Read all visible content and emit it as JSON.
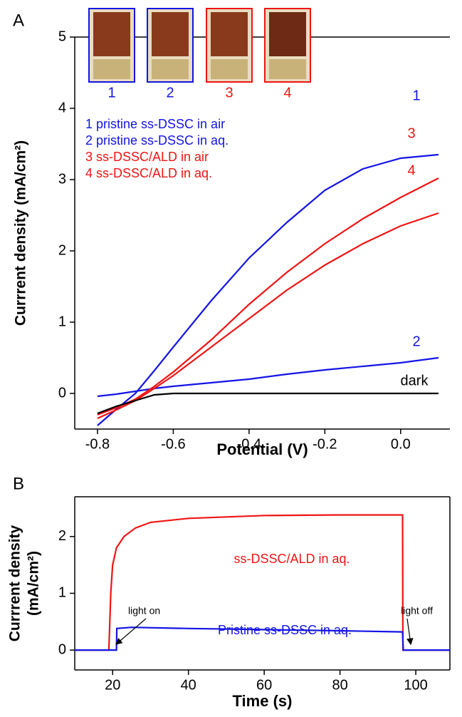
{
  "chart_data": [
    {
      "type": "line",
      "panel": "A",
      "xlabel": "Potential (V)",
      "ylabel": [
        "Currrent density (mA/cm²)"
      ],
      "xlim": [
        -0.86,
        0.13
      ],
      "ylim": [
        -0.5,
        5
      ],
      "xticks": [
        -0.8,
        -0.6,
        -0.4,
        -0.2,
        {
          "value": 0,
          "label": "0.0"
        }
      ],
      "yticks": [
        0,
        1,
        2,
        3,
        4,
        5
      ],
      "photo_labels": [
        "1",
        "2",
        "3",
        "4"
      ],
      "x": [
        -0.8,
        -0.75,
        -0.7,
        -0.65,
        -0.6,
        -0.5,
        -0.4,
        -0.3,
        -0.2,
        -0.1,
        0.0,
        0.1
      ],
      "series": [
        {
          "name": "1 pristine ss-DSSC in air",
          "label": "1",
          "color": "#1414e6",
          "values": [
            -0.45,
            -0.22,
            0.0,
            0.32,
            0.65,
            1.3,
            1.9,
            2.4,
            2.85,
            3.15,
            3.3,
            3.35
          ]
        },
        {
          "name": "2 pristine ss-DSSC in aq.",
          "label": "2",
          "color": "#1414e6",
          "values": [
            -0.04,
            -0.01,
            0.03,
            0.07,
            0.1,
            0.15,
            0.2,
            0.27,
            0.33,
            0.38,
            0.43,
            0.5
          ]
        },
        {
          "name": "3 ss-DSSC/ALD in air",
          "label": "3",
          "color": "#f01414",
          "values": [
            -0.3,
            -0.2,
            -0.08,
            0.1,
            0.3,
            0.75,
            1.25,
            1.7,
            2.1,
            2.45,
            2.75,
            3.02
          ]
        },
        {
          "name": "4 ss-DSSC/ALD in aq.",
          "label": "4",
          "color": "#f01414",
          "values": [
            -0.35,
            -0.23,
            -0.1,
            0.07,
            0.25,
            0.65,
            1.05,
            1.45,
            1.8,
            2.1,
            2.35,
            2.53
          ]
        },
        {
          "name": "dark",
          "color": "#000000",
          "values": [
            -0.28,
            -0.18,
            -0.1,
            -0.02,
            0,
            0,
            0,
            0,
            0,
            0,
            0,
            0
          ]
        }
      ]
    },
    {
      "type": "line",
      "panel": "B",
      "xlabel": "Time (s)",
      "ylabel": [
        "Currrent density",
        "(mA/cm²)"
      ],
      "xlim": [
        10,
        109
      ],
      "ylim": [
        -0.35,
        2.7
      ],
      "xticks": [
        20,
        40,
        60,
        80,
        100
      ],
      "yticks": [
        0,
        1,
        2
      ],
      "annotations": [
        "light on",
        "light off"
      ],
      "series": [
        {
          "name": "ss-DSSC/ALD in aq.",
          "color": "#f01414",
          "x": [
            10,
            19,
            19.2,
            19.5,
            20,
            21,
            23,
            26,
            30,
            40,
            60,
            80,
            96.5,
            96.6,
            109
          ],
          "values": [
            0,
            0,
            0.4,
            1.0,
            1.5,
            1.8,
            2.0,
            2.15,
            2.25,
            2.32,
            2.37,
            2.38,
            2.38,
            0,
            0
          ]
        },
        {
          "name": "Pristine ss-DSSC in aq.",
          "color": "#1414e6",
          "x": [
            10,
            21,
            21.1,
            25,
            40,
            60,
            80,
            96.5,
            96.7,
            109
          ],
          "values": [
            0,
            0,
            0.38,
            0.4,
            0.38,
            0.36,
            0.34,
            0.32,
            0,
            0
          ]
        }
      ]
    }
  ]
}
